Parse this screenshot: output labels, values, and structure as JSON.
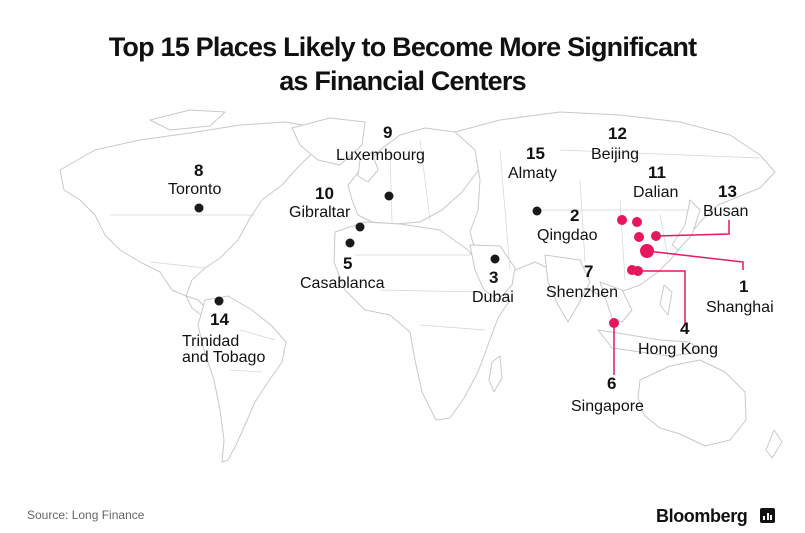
{
  "title_line1": "Top 15 Places Likely to Become More Significant",
  "title_line2": "as Financial Centers",
  "source": "Source: Long Finance",
  "brand": "Bloomberg",
  "colors": {
    "black_marker": "#1a1a1a",
    "red_marker": "#e8175d",
    "land_stroke": "#c9c9c9"
  },
  "places": [
    {
      "rank": "1",
      "name": "Shanghai"
    },
    {
      "rank": "2",
      "name": "Qingdao"
    },
    {
      "rank": "3",
      "name": "Dubai"
    },
    {
      "rank": "4",
      "name": "Hong Kong"
    },
    {
      "rank": "5",
      "name": "Casablanca"
    },
    {
      "rank": "6",
      "name": "Singapore"
    },
    {
      "rank": "7",
      "name": "Shenzhen"
    },
    {
      "rank": "8",
      "name": "Toronto"
    },
    {
      "rank": "9",
      "name": "Luxembourg"
    },
    {
      "rank": "10",
      "name": "Gibraltar"
    },
    {
      "rank": "11",
      "name": "Dalian"
    },
    {
      "rank": "12",
      "name": "Beijing"
    },
    {
      "rank": "13",
      "name": "Busan"
    },
    {
      "rank": "14",
      "name": "Trinidad and Tobago",
      "name_line1": "Trinidad",
      "name_line2": "and Tobago"
    },
    {
      "rank": "15",
      "name": "Almaty"
    }
  ]
}
